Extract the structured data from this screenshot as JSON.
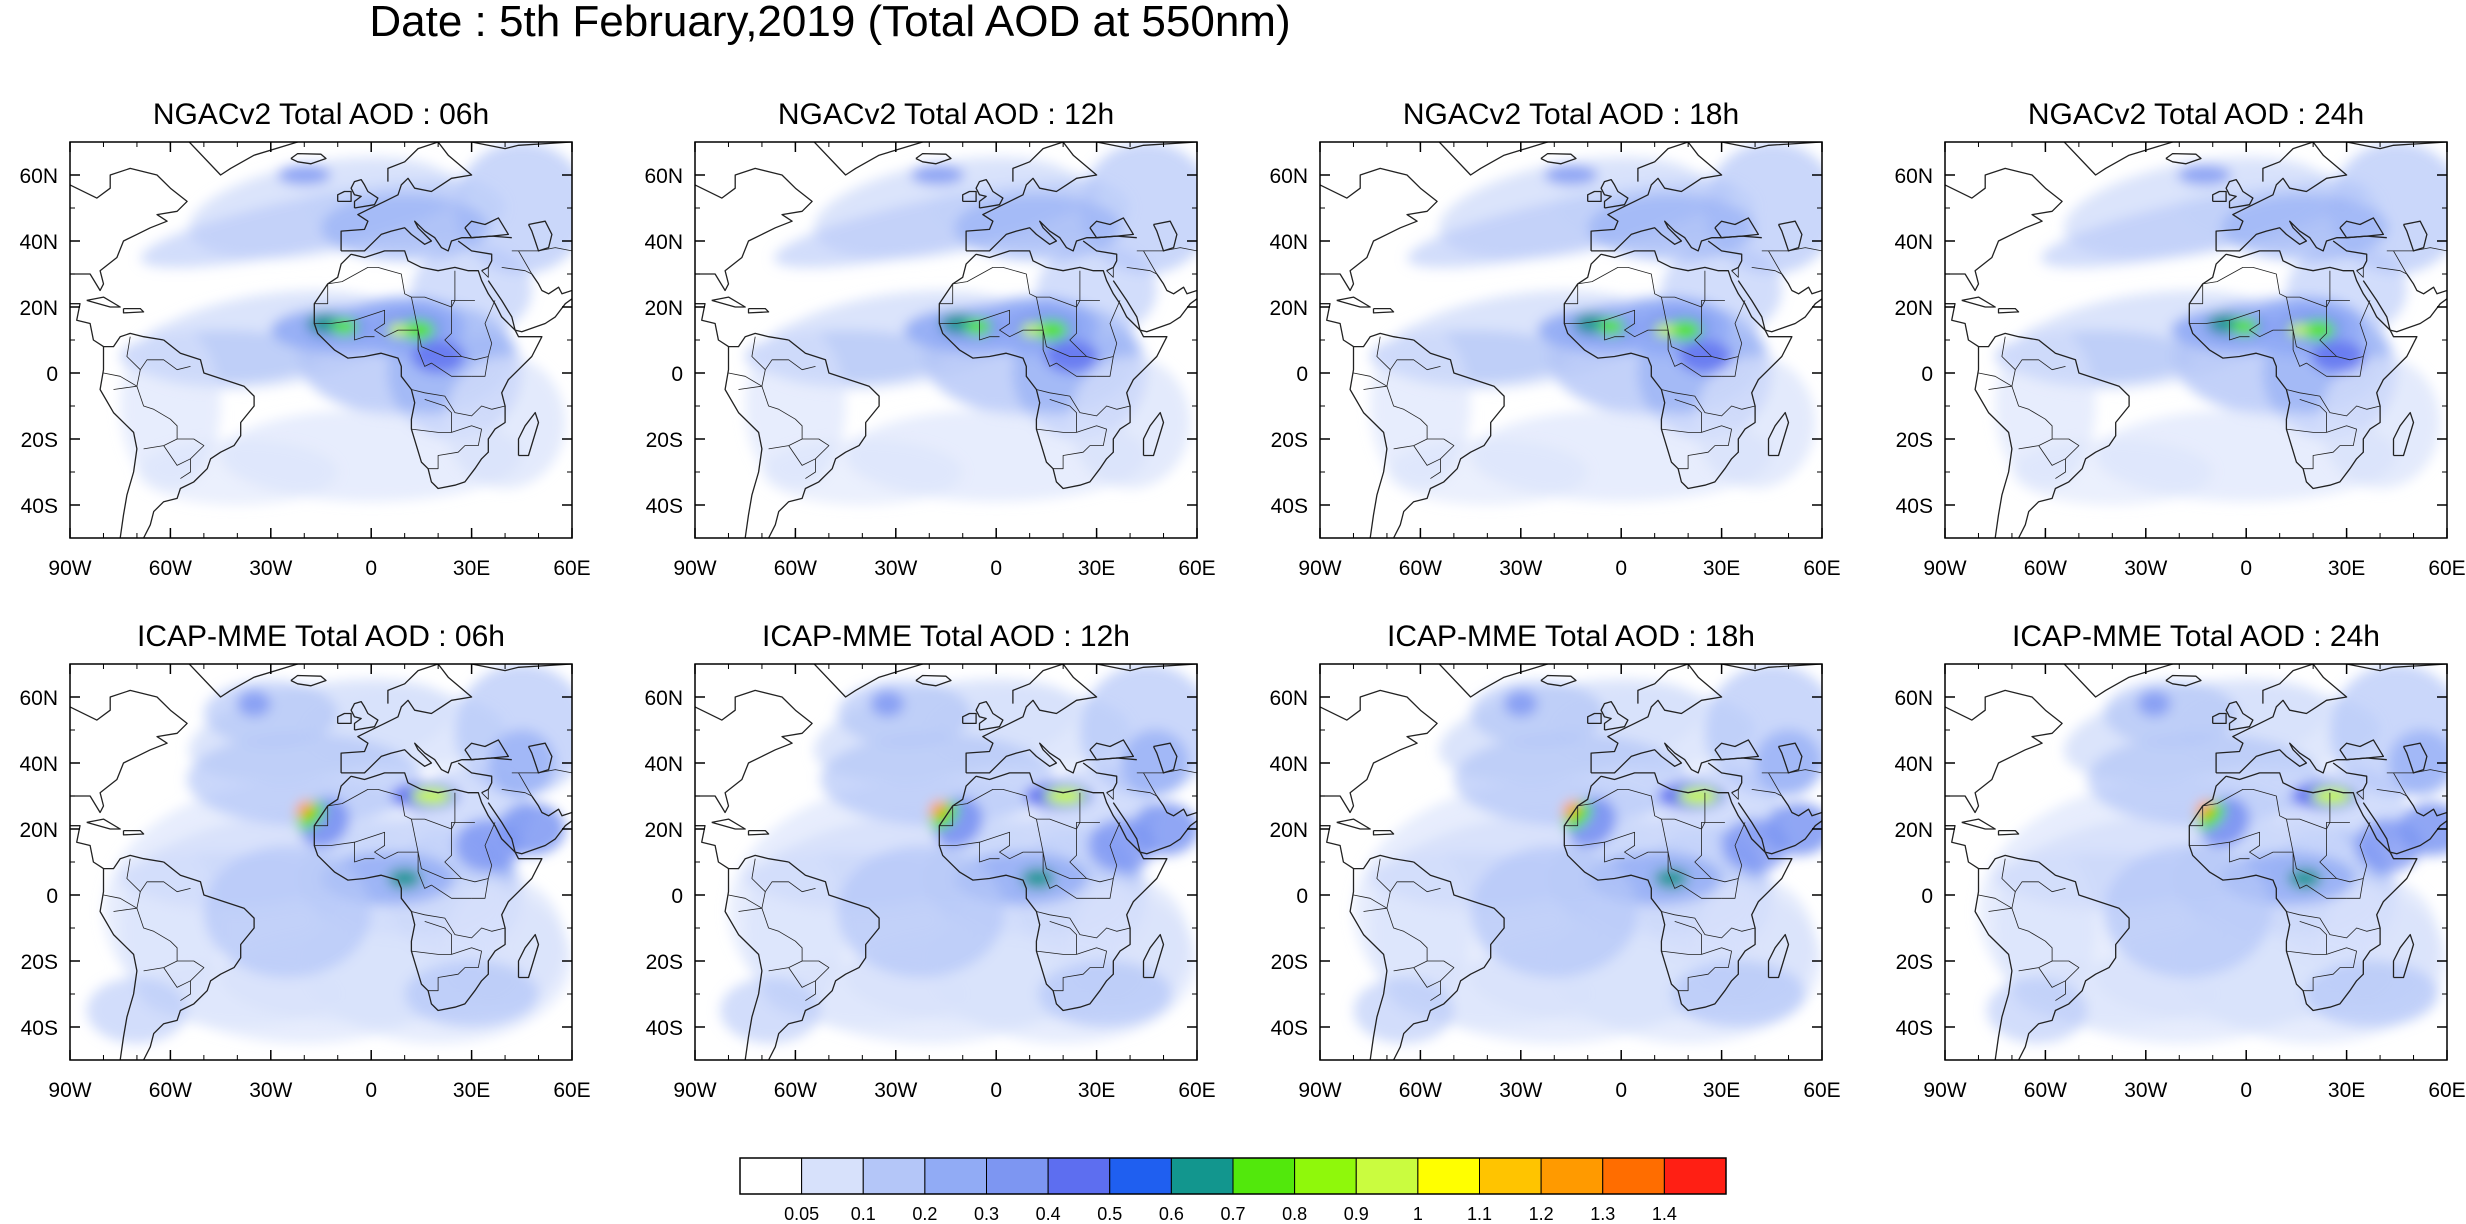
{
  "title": "Date : 5th February,2019 (Total AOD at 550nm)",
  "panels": [
    {
      "title": "NGACv2 Total AOD : 06h",
      "model": "NGACv2",
      "hour": "06h"
    },
    {
      "title": "NGACv2 Total AOD : 12h",
      "model": "NGACv2",
      "hour": "12h"
    },
    {
      "title": "NGACv2 Total AOD : 18h",
      "model": "NGACv2",
      "hour": "18h"
    },
    {
      "title": "NGACv2 Total AOD : 24h",
      "model": "NGACv2",
      "hour": "24h"
    },
    {
      "title": "ICAP-MME Total AOD : 06h",
      "model": "ICAP-MME",
      "hour": "06h"
    },
    {
      "title": "ICAP-MME Total AOD : 12h",
      "model": "ICAP-MME",
      "hour": "12h"
    },
    {
      "title": "ICAP-MME Total AOD : 18h",
      "model": "ICAP-MME",
      "hour": "18h"
    },
    {
      "title": "ICAP-MME Total AOD : 24h",
      "model": "ICAP-MME",
      "hour": "24h"
    }
  ],
  "lat_ticks": [
    "60N",
    "40N",
    "20N",
    "0",
    "20S",
    "40S"
  ],
  "lon_ticks": [
    "90W",
    "60W",
    "30W",
    "0",
    "30E",
    "60E"
  ],
  "colorbar": {
    "labels": [
      "0.05",
      "0.1",
      "0.2",
      "0.3",
      "0.4",
      "0.5",
      "0.6",
      "0.7",
      "0.8",
      "0.9",
      "1",
      "1.1",
      "1.2",
      "1.3",
      "1.4"
    ],
    "colors": [
      "#ffffff",
      "#d7e1fb",
      "#b4c6f8",
      "#91abf5",
      "#7d96f2",
      "#5d6ef0",
      "#1f5ff0",
      "#12968e",
      "#52e80c",
      "#8ff80b",
      "#cafc3f",
      "#ffff00",
      "#ffc400",
      "#ff9a00",
      "#ff6d00",
      "#ff1f14"
    ]
  }
}
